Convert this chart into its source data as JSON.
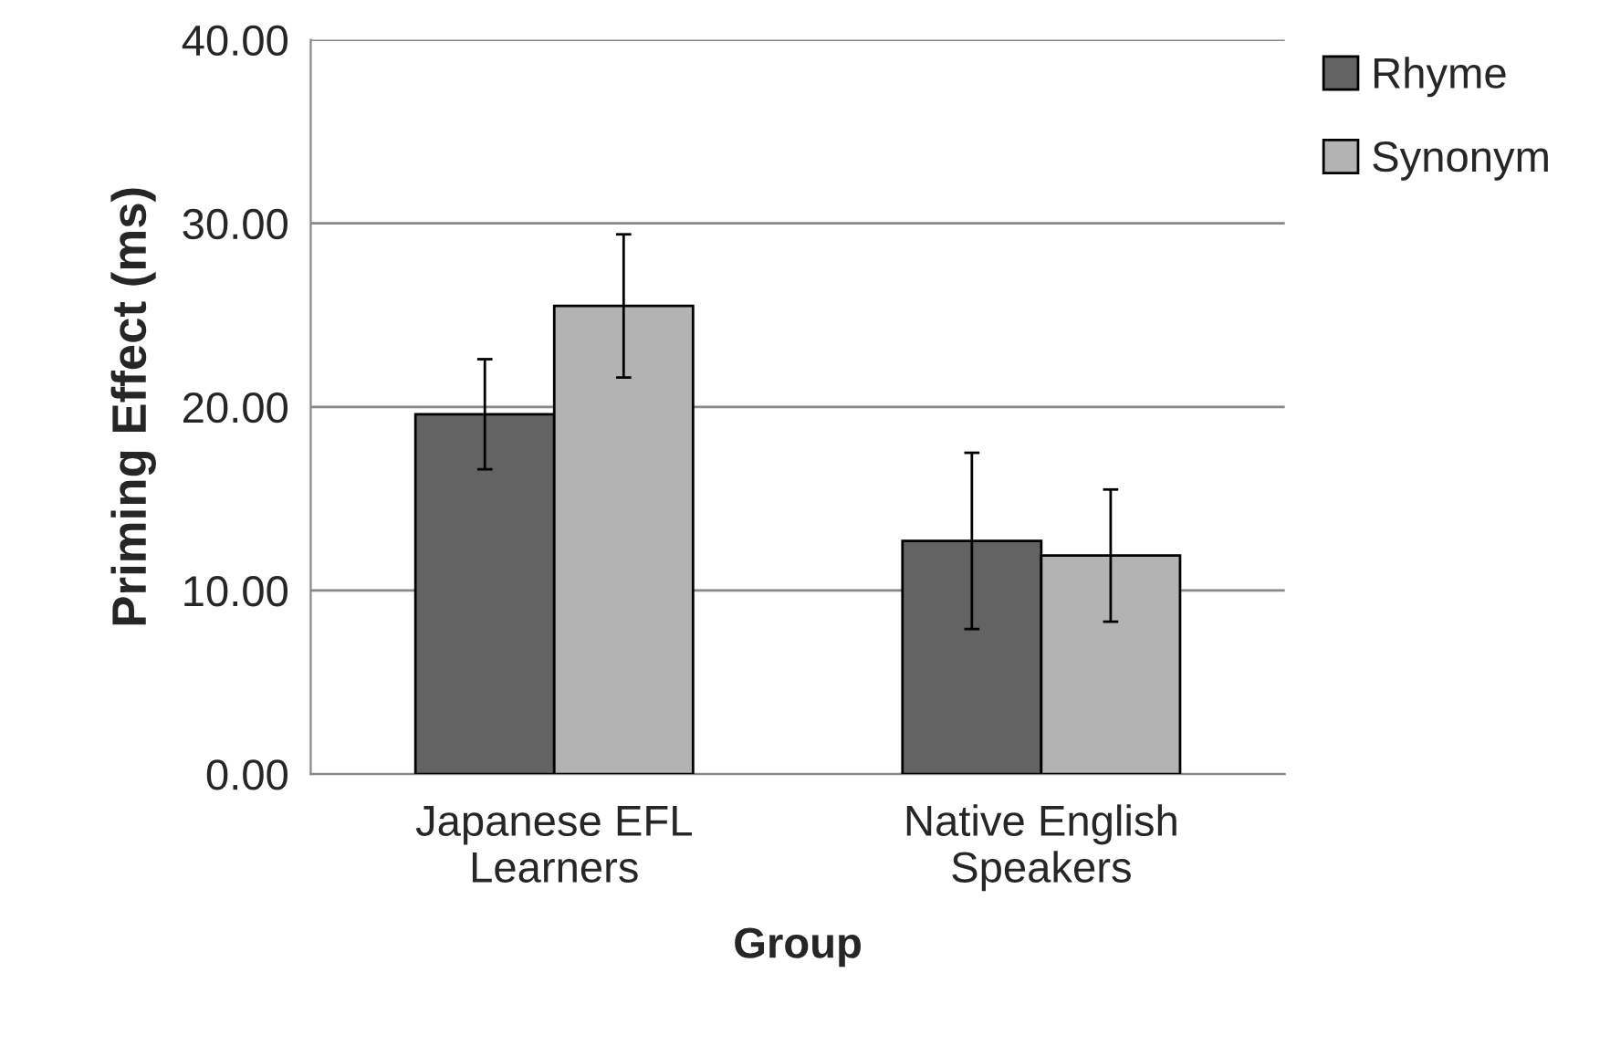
{
  "chart_data": {
    "type": "bar",
    "xlabel": "Group",
    "ylabel": "Priming Effect (ms)",
    "categories": [
      "Japanese EFL\nLearners",
      "Native English\nSpeakers"
    ],
    "series": [
      {
        "name": "Rhyme",
        "color": "#636363",
        "values": [
          19.6,
          12.7
        ],
        "errors": [
          3.0,
          4.8
        ]
      },
      {
        "name": "Synonym",
        "color": "#b3b3b3",
        "values": [
          25.5,
          11.9
        ],
        "errors": [
          3.9,
          3.6
        ]
      }
    ],
    "ylim": [
      0,
      40
    ],
    "yticks": [
      {
        "value": 0,
        "label": "0.00"
      },
      {
        "value": 10,
        "label": "10.00"
      },
      {
        "value": 20,
        "label": "20.00"
      },
      {
        "value": 30,
        "label": "30.00"
      },
      {
        "value": 40,
        "label": "40.00"
      }
    ],
    "grid": "y",
    "legend": "right"
  }
}
